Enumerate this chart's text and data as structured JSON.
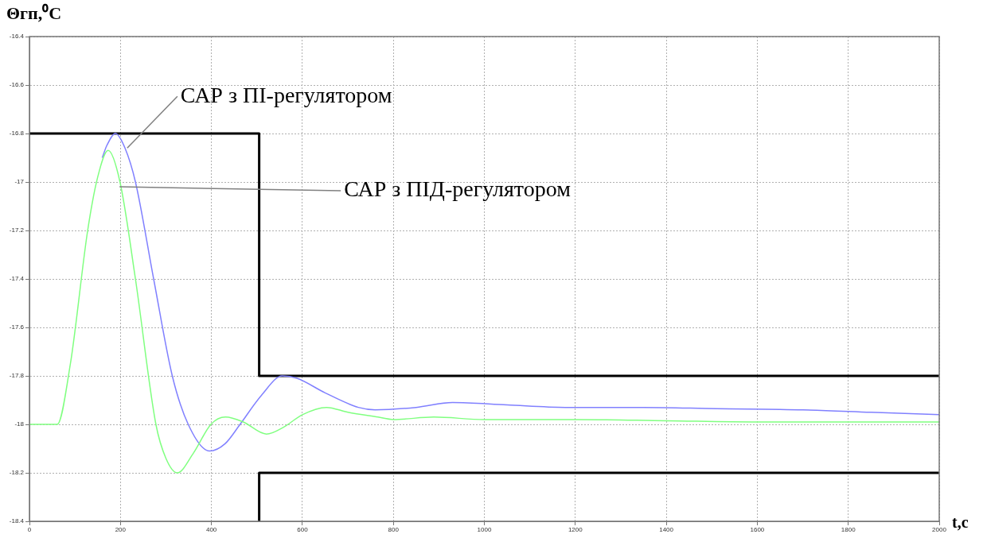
{
  "chart_data": {
    "type": "line",
    "xlabel": "t,c",
    "ylabel": "Θгп,⁰C",
    "xlim": [
      0,
      2000
    ],
    "xticks": [
      0,
      200,
      400,
      600,
      800,
      1000,
      1200,
      1400,
      1600,
      1800,
      2000
    ],
    "ylim": [
      -18.4,
      -16.4
    ],
    "yticks": [
      -16.4,
      -16.6,
      -16.8,
      -17,
      -17.2,
      -17.4,
      -17.6,
      -17.8,
      -18,
      -18.2,
      -18.4
    ],
    "grid": true,
    "legend": false,
    "marker": "none",
    "series": [
      {
        "color": "#000000",
        "x": [
          0,
          505,
          505,
          2000
        ],
        "values": [
          -16.8,
          -16.8,
          -17.8,
          -17.8
        ]
      },
      {
        "color": "#000000",
        "x": [
          505,
          505,
          2000
        ],
        "values": [
          -18.4,
          -18.2,
          -18.2
        ]
      },
      {
        "color": "#8080ff",
        "x": [
          160,
          170,
          189,
          210,
          233,
          273,
          314,
          349,
          396,
          430,
          463,
          510,
          556,
          588,
          650,
          723,
          760,
          850,
          930,
          1050,
          1178,
          1350,
          1510,
          1700,
          1850,
          2000
        ],
        "values": [
          -16.9,
          -16.85,
          -16.8,
          -16.86,
          -17,
          -17.4,
          -17.8,
          -18,
          -18.11,
          -18.08,
          -18,
          -17.88,
          -17.8,
          -17.81,
          -17.87,
          -17.93,
          -17.94,
          -17.93,
          -17.91,
          -17.92,
          -17.93,
          -17.93,
          -17.935,
          -17.94,
          -17.95,
          -17.96
        ]
      },
      {
        "color": "#80ff80",
        "x": [
          0,
          61,
          90,
          128,
          150,
          173,
          199,
          233,
          278,
          300,
          325,
          360,
          399,
          431,
          470,
          521,
          560,
          600,
          653,
          700,
          766,
          800,
          889,
          1000,
          1200,
          1400,
          1600,
          1800,
          2000
        ],
        "values": [
          -18,
          -18,
          -17.75,
          -17.2,
          -16.98,
          -16.87,
          -17,
          -17.4,
          -18,
          -18.14,
          -18.2,
          -18.12,
          -18,
          -17.97,
          -17.99,
          -18.04,
          -18.01,
          -17.96,
          -17.93,
          -17.95,
          -17.97,
          -17.98,
          -17.97,
          -17.98,
          -17.98,
          -17.985,
          -17.99,
          -17.99,
          -17.99
        ]
      }
    ],
    "annotations": [
      {
        "text": "САР з ПІ-регулятором",
        "x": 215,
        "y": -16.86
      },
      {
        "text": "САР з ПІД-регулятором",
        "x": 198,
        "y": -17.02
      }
    ]
  }
}
